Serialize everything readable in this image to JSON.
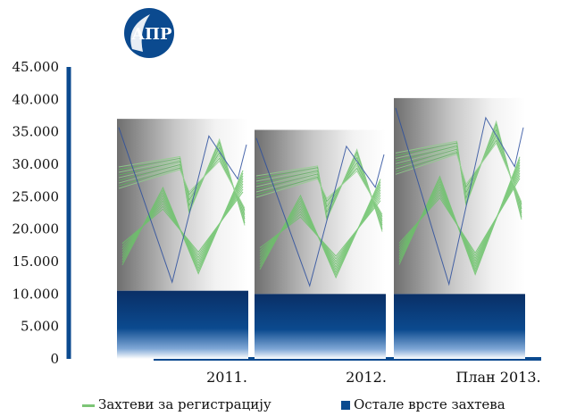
{
  "chart_data": {
    "type": "bar",
    "stacked": true,
    "categories": [
      "2011.",
      "2012.",
      "План 2013."
    ],
    "series": [
      {
        "name": "Остале врсте захтева",
        "values": [
          10500,
          10000,
          10000
        ],
        "color": "#0b4a8f"
      },
      {
        "name": "Захтеви за регистрацију",
        "values": [
          26500,
          25300,
          30200
        ],
        "color": "#7cc576"
      }
    ],
    "ylim": [
      0,
      45000
    ],
    "yticks": [
      0,
      5000,
      10000,
      15000,
      20000,
      25000,
      30000,
      35000,
      40000,
      45000
    ],
    "ytick_labels": [
      "0",
      "5.000",
      "10.000",
      "15.000",
      "20.000",
      "25.000",
      "30.000",
      "35.000",
      "40.000",
      "45.000"
    ],
    "legend_position": "bottom"
  },
  "logo": {
    "text": "АПР"
  },
  "legend": {
    "registration": "Захтеви за регистрацију",
    "other": "Остале врсте захтева"
  }
}
